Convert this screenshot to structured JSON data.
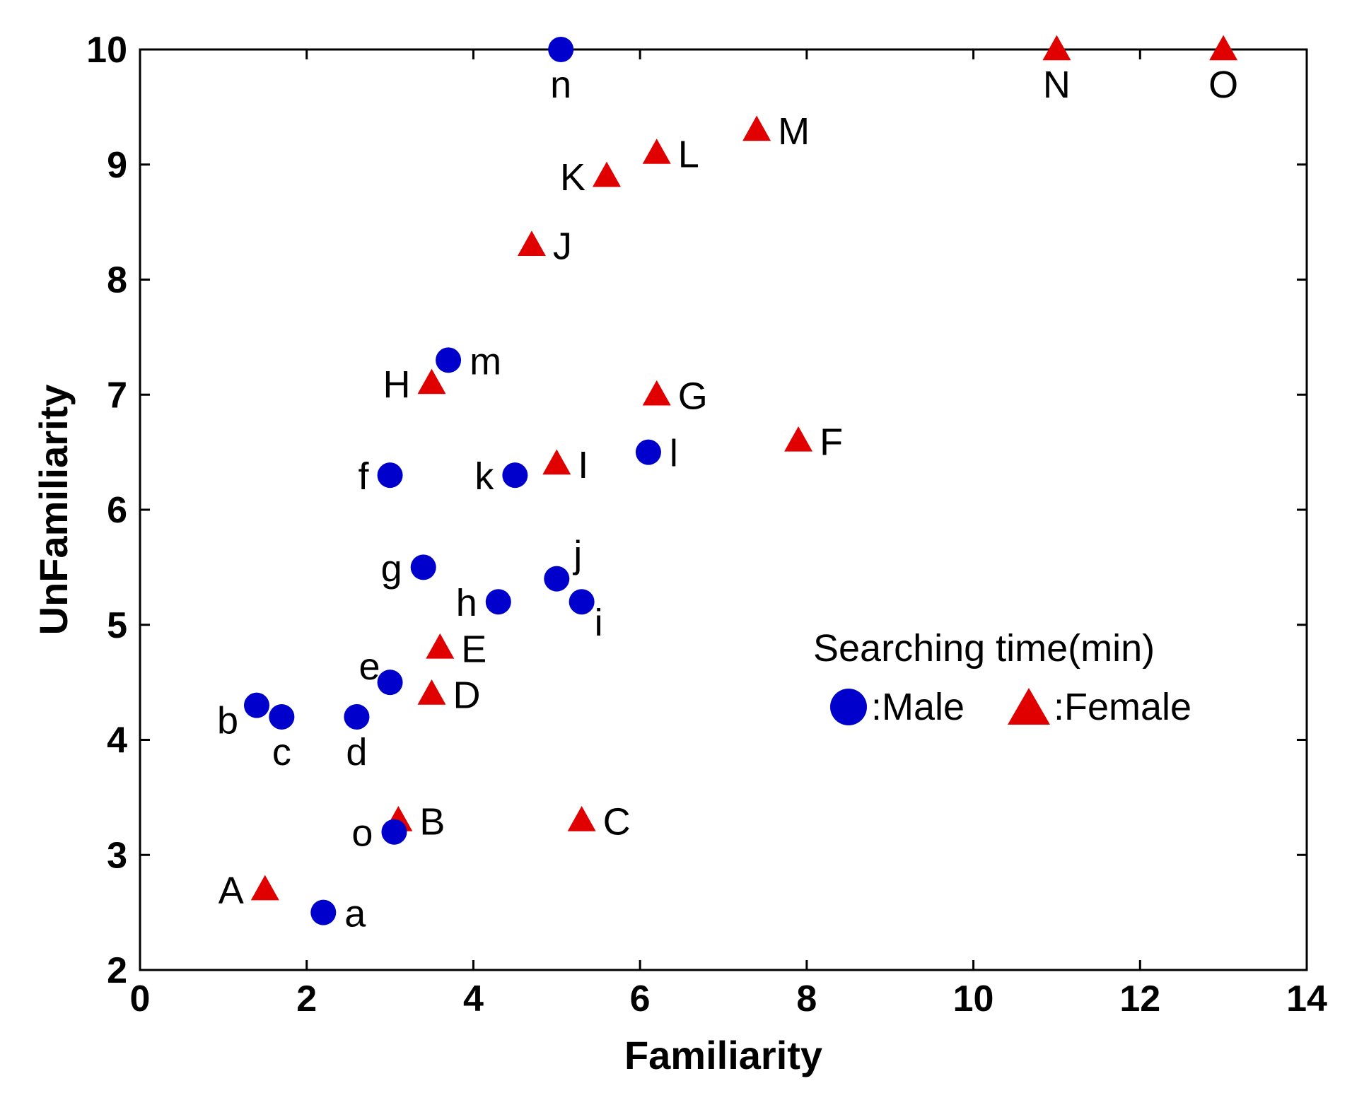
{
  "chart_data": {
    "type": "scatter",
    "title": "",
    "xlabel": "Familiarity",
    "ylabel": "UnFamiliarity",
    "xlim": [
      0,
      14
    ],
    "ylim": [
      2,
      10
    ],
    "xticks": [
      0,
      2,
      4,
      6,
      8,
      10,
      12,
      14
    ],
    "yticks": [
      2,
      3,
      4,
      5,
      6,
      7,
      8,
      9,
      10
    ],
    "grid": false,
    "legend": {
      "title": "Searching time(min)",
      "position": "right-middle",
      "entries": [
        {
          "label": ":Male",
          "series": "male"
        },
        {
          "label": ":Female",
          "series": "female"
        }
      ]
    },
    "series": [
      {
        "name": "Male",
        "key": "male",
        "marker": "circle",
        "color": "#0000CC",
        "points": [
          {
            "label": "a",
            "x": 2.2,
            "y": 2.5,
            "label_pos": "right"
          },
          {
            "label": "b",
            "x": 1.4,
            "y": 4.3,
            "label_pos": "left-below"
          },
          {
            "label": "c",
            "x": 1.7,
            "y": 4.2,
            "label_pos": "below"
          },
          {
            "label": "d",
            "x": 2.6,
            "y": 4.2,
            "label_pos": "below"
          },
          {
            "label": "e",
            "x": 3.0,
            "y": 4.5,
            "label_pos": "left-above"
          },
          {
            "label": "f",
            "x": 3.0,
            "y": 6.3,
            "label_pos": "left"
          },
          {
            "label": "g",
            "x": 3.4,
            "y": 5.5,
            "label_pos": "left"
          },
          {
            "label": "h",
            "x": 4.3,
            "y": 5.2,
            "label_pos": "left"
          },
          {
            "label": "i",
            "x": 5.3,
            "y": 5.2,
            "label_pos": "right-below"
          },
          {
            "label": "j",
            "x": 5.0,
            "y": 5.4,
            "label_pos": "right-above"
          },
          {
            "label": "k",
            "x": 4.5,
            "y": 6.3,
            "label_pos": "left"
          },
          {
            "label": "l",
            "x": 6.1,
            "y": 6.5,
            "label_pos": "right"
          },
          {
            "label": "m",
            "x": 3.7,
            "y": 7.3,
            "label_pos": "right"
          },
          {
            "label": "n",
            "x": 5.05,
            "y": 10.0,
            "label_pos": "below"
          },
          {
            "label": "o",
            "x": 3.05,
            "y": 3.2,
            "label_pos": "left"
          }
        ]
      },
      {
        "name": "Female",
        "key": "female",
        "marker": "triangle",
        "color": "#E00000",
        "points": [
          {
            "label": "A",
            "x": 1.5,
            "y": 2.7,
            "label_pos": "left"
          },
          {
            "label": "B",
            "x": 3.1,
            "y": 3.3,
            "label_pos": "right"
          },
          {
            "label": "C",
            "x": 5.3,
            "y": 3.3,
            "label_pos": "right"
          },
          {
            "label": "D",
            "x": 3.5,
            "y": 4.4,
            "label_pos": "right"
          },
          {
            "label": "E",
            "x": 3.6,
            "y": 4.8,
            "label_pos": "right"
          },
          {
            "label": "F",
            "x": 7.9,
            "y": 6.6,
            "label_pos": "right"
          },
          {
            "label": "G",
            "x": 6.2,
            "y": 7.0,
            "label_pos": "right"
          },
          {
            "label": "H",
            "x": 3.5,
            "y": 7.1,
            "label_pos": "left"
          },
          {
            "label": "I",
            "x": 5.0,
            "y": 6.4,
            "label_pos": "right"
          },
          {
            "label": "J",
            "x": 4.7,
            "y": 8.3,
            "label_pos": "right"
          },
          {
            "label": "K",
            "x": 5.6,
            "y": 8.9,
            "label_pos": "left"
          },
          {
            "label": "L",
            "x": 6.2,
            "y": 9.1,
            "label_pos": "right"
          },
          {
            "label": "M",
            "x": 7.4,
            "y": 9.3,
            "label_pos": "right"
          },
          {
            "label": "N",
            "x": 11.0,
            "y": 10.0,
            "label_pos": "below"
          },
          {
            "label": "O",
            "x": 13.0,
            "y": 10.0,
            "label_pos": "below"
          }
        ]
      }
    ]
  }
}
